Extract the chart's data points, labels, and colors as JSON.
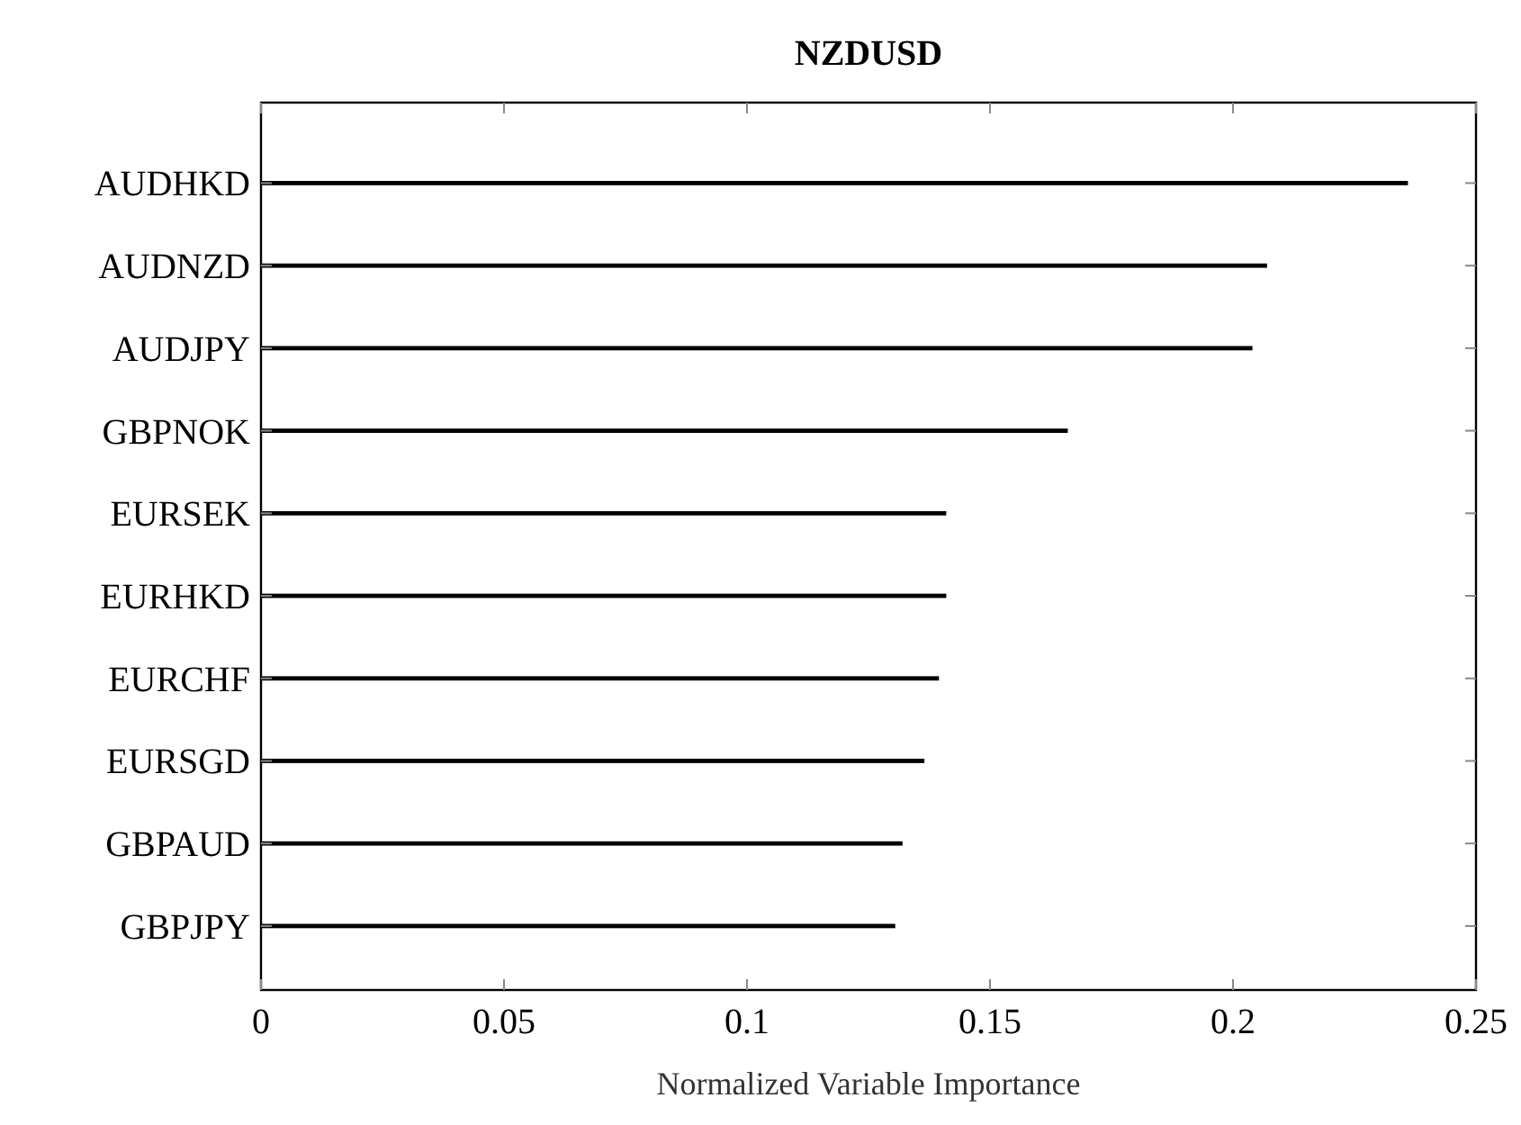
{
  "chart_data": {
    "type": "bar",
    "orientation": "horizontal",
    "title": "NZDUSD",
    "xlabel": "Normalized Variable Importance",
    "categories": [
      "AUDHKD",
      "AUDNZD",
      "AUDJPY",
      "GBPNOK",
      "EURSEK",
      "EURHKD",
      "EURCHF",
      "EURSGD",
      "GBPAUD",
      "GBPJPY"
    ],
    "values": [
      0.236,
      0.207,
      0.204,
      0.166,
      0.141,
      0.141,
      0.1395,
      0.1365,
      0.132,
      0.1305
    ],
    "color": "#000000",
    "xlim": [
      0,
      0.25
    ],
    "xticks": [
      0,
      0.05,
      0.1,
      0.15,
      0.2,
      0.25
    ],
    "grid": false
  }
}
